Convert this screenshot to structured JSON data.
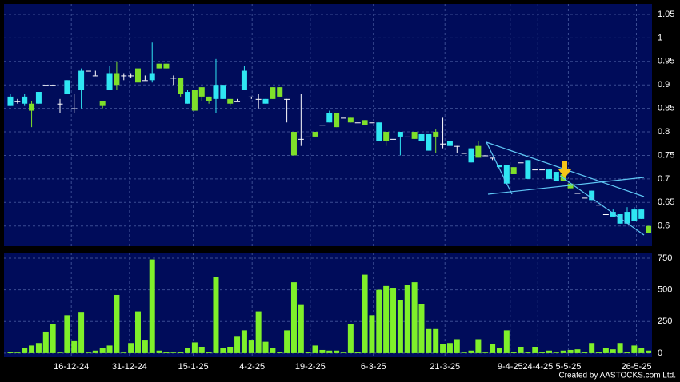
{
  "chart_data": [
    {
      "type": "candlestick",
      "up_color": "#7fe02a",
      "down_color": "#2fe6f2",
      "xlim": [
        -0.9,
        90.5
      ],
      "xticks": [
        {
          "value": 8.6,
          "label": "16-12-24"
        },
        {
          "value": 16.8,
          "label": "31-12-24"
        },
        {
          "value": 25.8,
          "label": "15-1-25"
        },
        {
          "value": 34.1,
          "label": "4-2-25"
        },
        {
          "value": 42.3,
          "label": "19-2-25"
        },
        {
          "value": 51.2,
          "label": "6-3-25"
        },
        {
          "value": 61.3,
          "label": "21-3-25"
        },
        {
          "value": 70.5,
          "label": "9-4-25"
        },
        {
          "value": 74.4,
          "label": "24-4-25"
        },
        {
          "value": 78.7,
          "label": "5-5-25"
        },
        {
          "value": 88.3,
          "label": "26-5-25"
        }
      ],
      "ylim": [
        0.557,
        1.072
      ],
      "yticks": [
        0.6,
        0.65,
        0.7,
        0.75,
        0.8,
        0.85,
        0.9,
        0.95,
        1,
        1.05
      ],
      "grid": true,
      "ohlc": [
        [
          0.875,
          0.88,
          0.855,
          0.855
        ],
        [
          0.865,
          0.87,
          0.86,
          0.865
        ],
        [
          0.875,
          0.88,
          0.855,
          0.86
        ],
        [
          0.845,
          0.865,
          0.81,
          0.86
        ],
        [
          0.885,
          0.885,
          0.86,
          0.86
        ],
        [
          0.9,
          0.9,
          0.9,
          0.9
        ],
        [
          0.9,
          0.9,
          0.9,
          0.9
        ],
        [
          0.86,
          0.87,
          0.84,
          0.86
        ],
        [
          0.91,
          0.91,
          0.88,
          0.88
        ],
        [
          0.85,
          0.88,
          0.84,
          0.85
        ],
        [
          0.93,
          0.935,
          0.85,
          0.89
        ],
        [
          0.93,
          0.93,
          0.93,
          0.93
        ],
        [
          0.92,
          0.93,
          0.92,
          0.92
        ],
        [
          0.855,
          0.865,
          0.85,
          0.865
        ],
        [
          0.925,
          0.94,
          0.89,
          0.89
        ],
        [
          0.9,
          0.95,
          0.89,
          0.925
        ],
        [
          0.92,
          0.925,
          0.91,
          0.92
        ],
        [
          0.92,
          0.925,
          0.915,
          0.92
        ],
        [
          0.905,
          0.94,
          0.87,
          0.935
        ],
        [
          0.91,
          0.92,
          0.91,
          0.91
        ],
        [
          0.925,
          0.99,
          0.905,
          0.91
        ],
        [
          0.935,
          0.945,
          0.935,
          0.945
        ],
        [
          0.935,
          0.945,
          0.935,
          0.945
        ],
        [
          0.915,
          0.92,
          0.9,
          0.915
        ],
        [
          0.88,
          0.915,
          0.875,
          0.915
        ],
        [
          0.885,
          0.89,
          0.86,
          0.86
        ],
        [
          0.845,
          0.89,
          0.845,
          0.89
        ],
        [
          0.875,
          0.895,
          0.865,
          0.895
        ],
        [
          0.865,
          0.875,
          0.86,
          0.875
        ],
        [
          0.9,
          0.955,
          0.84,
          0.87
        ],
        [
          0.9,
          0.9,
          0.87,
          0.87
        ],
        [
          0.86,
          0.87,
          0.855,
          0.87
        ],
        [
          0.865,
          0.87,
          0.865,
          0.865
        ],
        [
          0.93,
          0.94,
          0.89,
          0.89
        ],
        [
          0.875,
          0.875,
          0.87,
          0.875
        ],
        [
          0.87,
          0.88,
          0.85,
          0.87
        ],
        [
          0.87,
          0.87,
          0.86,
          0.86
        ],
        [
          0.87,
          0.895,
          0.87,
          0.895
        ],
        [
          0.875,
          0.895,
          0.875,
          0.895
        ],
        [
          0.87,
          0.87,
          0.82,
          0.87
        ],
        [
          0.75,
          0.8,
          0.75,
          0.8
        ],
        [
          0.785,
          0.88,
          0.77,
          0.785
        ],
        [
          0.79,
          0.79,
          0.79,
          0.79
        ],
        [
          0.79,
          0.8,
          0.79,
          0.8
        ],
        [
          0.815,
          0.815,
          0.815,
          0.815
        ],
        [
          0.84,
          0.845,
          0.82,
          0.82
        ],
        [
          0.81,
          0.84,
          0.81,
          0.84
        ],
        [
          0.83,
          0.83,
          0.83,
          0.83
        ],
        [
          0.82,
          0.83,
          0.82,
          0.83
        ],
        [
          0.82,
          0.82,
          0.82,
          0.82
        ],
        [
          0.815,
          0.825,
          0.815,
          0.825
        ],
        [
          0.82,
          0.82,
          0.82,
          0.82
        ],
        [
          0.82,
          0.82,
          0.78,
          0.78
        ],
        [
          0.78,
          0.8,
          0.77,
          0.8
        ],
        [
          0.785,
          0.785,
          0.785,
          0.785
        ],
        [
          0.8,
          0.8,
          0.75,
          0.79
        ],
        [
          0.79,
          0.79,
          0.79,
          0.79
        ],
        [
          0.785,
          0.8,
          0.785,
          0.8
        ],
        [
          0.795,
          0.795,
          0.78,
          0.78
        ],
        [
          0.795,
          0.795,
          0.76,
          0.76
        ],
        [
          0.79,
          0.805,
          0.755,
          0.8
        ],
        [
          0.775,
          0.83,
          0.765,
          0.775
        ],
        [
          0.78,
          0.78,
          0.77,
          0.77
        ],
        [
          0.77,
          0.77,
          0.755,
          0.77
        ],
        [
          0.755,
          0.755,
          0.755,
          0.755
        ],
        [
          0.765,
          0.765,
          0.735,
          0.735
        ],
        [
          0.745,
          0.78,
          0.745,
          0.77
        ],
        [
          0.75,
          0.75,
          0.75,
          0.75
        ],
        [
          0.745,
          0.745,
          0.74,
          0.745
        ],
        [
          0.73,
          0.73,
          0.725,
          0.725
        ],
        [
          0.73,
          0.73,
          0.69,
          0.69
        ],
        [
          0.71,
          0.725,
          0.71,
          0.725
        ],
        [
          0.735,
          0.735,
          0.735,
          0.735
        ],
        [
          0.74,
          0.74,
          0.7,
          0.7
        ],
        [
          0.72,
          0.72,
          0.72,
          0.72
        ],
        [
          0.72,
          0.72,
          0.72,
          0.72
        ],
        [
          0.72,
          0.72,
          0.7,
          0.7
        ],
        [
          0.715,
          0.715,
          0.695,
          0.695
        ],
        [
          0.695,
          0.71,
          0.695,
          0.71
        ],
        [
          0.68,
          0.69,
          0.68,
          0.69
        ],
        [
          0.67,
          0.67,
          0.67,
          0.67
        ],
        [
          0.66,
          0.66,
          0.66,
          0.66
        ],
        [
          0.675,
          0.675,
          0.655,
          0.655
        ],
        [
          0.645,
          0.645,
          0.645,
          0.645
        ],
        [
          0.625,
          0.625,
          0.625,
          0.625
        ],
        [
          0.63,
          0.635,
          0.62,
          0.62
        ],
        [
          0.625,
          0.625,
          0.605,
          0.605
        ],
        [
          0.63,
          0.64,
          0.605,
          0.605
        ],
        [
          0.635,
          0.64,
          0.61,
          0.61
        ],
        [
          0.635,
          0.635,
          0.615,
          0.615
        ],
        [
          0.585,
          0.6,
          0.585,
          0.6
        ]
      ]
    },
    {
      "type": "bar",
      "color": "#7ff02a",
      "xlim": [
        -0.9,
        90.5
      ],
      "ylim": [
        -32,
        794
      ],
      "yticks": [
        0,
        250,
        500,
        750
      ],
      "grid": true,
      "values": [
        10,
        5,
        40,
        60,
        80,
        170,
        230,
        5,
        300,
        95,
        320,
        5,
        20,
        40,
        60,
        460,
        5,
        80,
        330,
        100,
        740,
        20,
        10,
        5,
        10,
        40,
        85,
        50,
        10,
        600,
        40,
        50,
        130,
        180,
        100,
        330,
        90,
        40,
        10,
        180,
        560,
        380,
        10,
        60,
        25,
        20,
        20,
        5,
        230,
        10,
        620,
        300,
        500,
        530,
        510,
        420,
        540,
        560,
        390,
        190,
        190,
        70,
        80,
        110,
        5,
        20,
        110,
        5,
        70,
        40,
        180,
        10,
        50,
        10,
        50,
        10,
        20,
        5,
        20,
        25,
        30,
        10,
        80,
        10,
        40,
        30,
        80,
        10,
        60,
        40,
        20
      ]
    }
  ],
  "credit": "Created by AASTOCKS.com Ltd."
}
